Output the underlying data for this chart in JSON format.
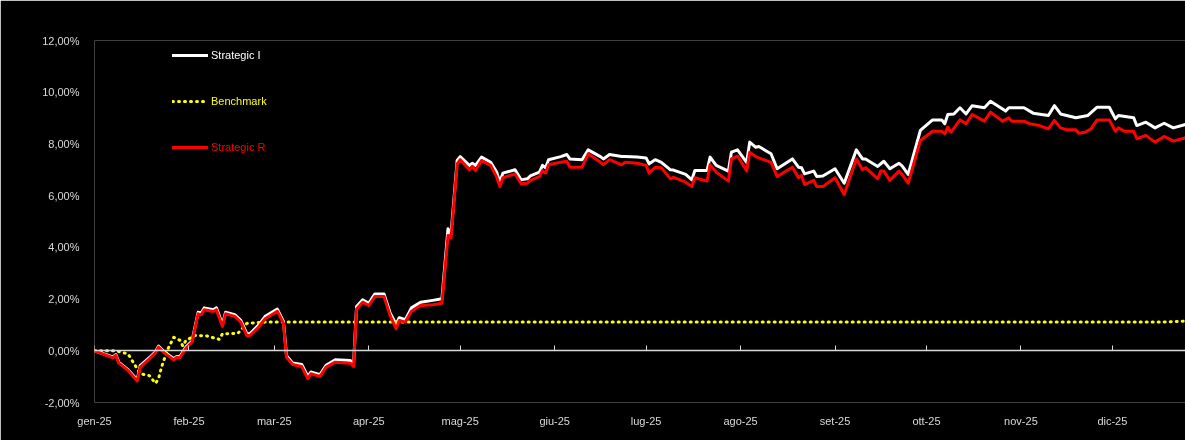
{
  "chart_data": {
    "type": "line",
    "legend": "top left",
    "line_style": "solid",
    "xlim": [
      "2025-01-01",
      "2025-12-25"
    ],
    "xticks": [
      {
        "value": "2025-01-01",
        "label": "gen-25"
      },
      {
        "value": "2025-02-01",
        "label": "feb-25"
      },
      {
        "value": "2025-03-01",
        "label": "mar-25"
      },
      {
        "value": "2025-04-01",
        "label": "apr-25"
      },
      {
        "value": "2025-05-01",
        "label": "mag-25"
      },
      {
        "value": "2025-06-01",
        "label": "giu-25"
      },
      {
        "value": "2025-07-01",
        "label": "lug-25"
      },
      {
        "value": "2025-08-01",
        "label": "ago-25"
      },
      {
        "value": "2025-09-01",
        "label": "set-25"
      },
      {
        "value": "2025-10-01",
        "label": "ott-25"
      },
      {
        "value": "2025-11-01",
        "label": "nov-25"
      },
      {
        "value": "2025-12-01",
        "label": "dic-25"
      }
    ],
    "ylim": [
      -2,
      12
    ],
    "yticks": [
      {
        "value": -2,
        "label": "-2,00%"
      },
      {
        "value": 0,
        "label": "0,00%"
      },
      {
        "value": 2,
        "label": "2,00%"
      },
      {
        "value": 4,
        "label": "4,00%"
      },
      {
        "value": 6,
        "label": "6,00%"
      },
      {
        "value": 8,
        "label": "8,00%"
      },
      {
        "value": 10,
        "label": "10,00%"
      },
      {
        "value": 12,
        "label": "12,00%"
      }
    ],
    "series": [
      {
        "name": "Strategic I",
        "color": "#ffffff",
        "x": [
          "2025-01-01",
          "2025-01-07",
          "2025-01-08",
          "2025-01-09",
          "2025-01-12",
          "2025-01-15",
          "2025-01-16",
          "2025-01-19",
          "2025-01-21",
          "2025-01-22",
          "2025-01-24",
          "2025-01-27",
          "2025-01-28",
          "2025-01-29",
          "2025-01-31",
          "2025-02-02",
          "2025-02-04",
          "2025-02-05",
          "2025-02-06",
          "2025-02-09",
          "2025-02-10",
          "2025-02-12",
          "2025-02-13",
          "2025-02-16",
          "2025-02-18",
          "2025-02-20",
          "2025-02-21",
          "2025-02-24",
          "2025-02-26",
          "2025-03-02",
          "2025-03-04",
          "2025-03-05",
          "2025-03-07",
          "2025-03-10",
          "2025-03-12",
          "2025-03-13",
          "2025-03-16",
          "2025-03-18",
          "2025-03-21",
          "2025-03-26",
          "2025-03-27",
          "2025-03-28",
          "2025-03-30",
          "2025-04-01",
          "2025-04-03",
          "2025-04-06",
          "2025-04-08",
          "2025-04-10",
          "2025-04-11",
          "2025-04-13",
          "2025-04-15",
          "2025-04-18",
          "2025-04-22",
          "2025-04-25",
          "2025-04-27",
          "2025-04-28",
          "2025-04-30",
          "2025-05-01",
          "2025-05-04",
          "2025-05-05",
          "2025-05-06",
          "2025-05-08",
          "2025-05-11",
          "2025-05-13",
          "2025-05-14",
          "2025-05-15",
          "2025-05-19",
          "2025-05-21",
          "2025-05-23",
          "2025-05-24",
          "2025-05-27",
          "2025-05-28",
          "2025-05-29",
          "2025-05-30",
          "2025-06-03",
          "2025-06-05",
          "2025-06-06",
          "2025-06-10",
          "2025-06-12",
          "2025-06-16",
          "2025-06-17",
          "2025-06-19",
          "2025-06-23",
          "2025-06-24",
          "2025-06-28",
          "2025-07-01",
          "2025-07-02",
          "2025-07-04",
          "2025-07-06",
          "2025-07-09",
          "2025-07-10",
          "2025-07-14",
          "2025-07-16",
          "2025-07-17",
          "2025-07-21",
          "2025-07-22",
          "2025-07-24",
          "2025-07-28",
          "2025-07-29",
          "2025-07-31",
          "2025-08-03",
          "2025-08-04",
          "2025-08-06",
          "2025-08-07",
          "2025-08-11",
          "2025-08-13",
          "2025-08-18",
          "2025-08-20",
          "2025-08-21",
          "2025-08-22",
          "2025-08-25",
          "2025-08-26",
          "2025-08-28",
          "2025-09-01",
          "2025-09-04",
          "2025-09-08",
          "2025-09-10",
          "2025-09-11",
          "2025-09-15",
          "2025-09-17",
          "2025-09-19",
          "2025-09-22",
          "2025-09-23",
          "2025-09-25",
          "2025-09-29",
          "2025-10-03",
          "2025-10-06",
          "2025-10-07",
          "2025-10-08",
          "2025-10-10",
          "2025-10-12",
          "2025-10-14",
          "2025-10-16",
          "2025-10-20",
          "2025-10-22",
          "2025-10-27",
          "2025-10-28",
          "2025-11-02",
          "2025-11-05",
          "2025-11-10",
          "2025-11-12",
          "2025-11-14",
          "2025-11-19",
          "2025-11-23",
          "2025-11-26",
          "2025-11-30",
          "2025-12-02",
          "2025-12-03",
          "2025-12-08",
          "2025-12-09",
          "2025-12-12",
          "2025-12-15",
          "2025-12-18",
          "2025-12-21",
          "2025-12-25"
        ],
        "values": [
          0,
          -0.24,
          -0.15,
          -0.45,
          -0.73,
          -1.12,
          -0.57,
          -0.27,
          -0.04,
          0.18,
          -0.05,
          -0.31,
          -0.22,
          -0.22,
          0.14,
          0.38,
          1.49,
          1.45,
          1.66,
          1.59,
          1.66,
          1.02,
          1.49,
          1.4,
          1.18,
          0.66,
          0.66,
          1.01,
          1.33,
          1.61,
          1.14,
          -0.19,
          -0.47,
          -0.53,
          -0.99,
          -0.82,
          -0.92,
          -0.56,
          -0.35,
          -0.38,
          -0.52,
          1.71,
          1.97,
          1.84,
          2.2,
          2.2,
          1.46,
          1.02,
          1.28,
          1.2,
          1.66,
          1.88,
          1.95,
          2.01,
          4.72,
          4.52,
          7.36,
          7.51,
          7.17,
          7.25,
          7.17,
          7.49,
          7.29,
          6.9,
          6.52,
          6.87,
          7.0,
          6.61,
          6.65,
          6.76,
          6.91,
          7.17,
          7.08,
          7.39,
          7.51,
          7.59,
          7.42,
          7.39,
          7.77,
          7.51,
          7.42,
          7.59,
          7.51,
          7.51,
          7.49,
          7.46,
          7.23,
          7.39,
          7.29,
          7.0,
          6.99,
          6.82,
          6.61,
          6.97,
          6.97,
          7.49,
          7.17,
          6.95,
          7.68,
          7.77,
          7.29,
          8.07,
          7.87,
          7.9,
          7.62,
          7.04,
          7.42,
          7.1,
          7.08,
          6.84,
          6.95,
          6.74,
          6.76,
          7.04,
          6.48,
          7.77,
          7.42,
          7.42,
          7.13,
          7.33,
          7.04,
          7.25,
          7.15,
          6.82,
          8.52,
          8.93,
          8.93,
          8.78,
          9.14,
          9.16,
          9.4,
          9.16,
          9.48,
          9.4,
          9.65,
          9.27,
          9.4,
          9.4,
          9.19,
          9.1,
          9.48,
          9.16,
          9.01,
          9.1,
          9.42,
          9.42,
          8.97,
          9.1,
          9.01,
          8.71,
          8.84,
          8.62,
          8.8,
          8.62,
          8.75
        ]
      },
      {
        "name": "Benchmark",
        "color": "#ffff00",
        "line_style": "dotted",
        "x": [
          "2025-01-01",
          "2025-01-08",
          "2025-01-12",
          "2025-01-14",
          "2025-01-16",
          "2025-01-19",
          "2025-01-21",
          "2025-01-22",
          "2025-01-23",
          "2025-01-25",
          "2025-01-27",
          "2025-01-29",
          "2025-01-30",
          "2025-01-31",
          "2025-02-03",
          "2025-02-07",
          "2025-02-11",
          "2025-02-12",
          "2025-02-17",
          "2025-02-20",
          "2025-02-26",
          "2025-12-17",
          "2025-12-25"
        ],
        "values": [
          0,
          0,
          -0.12,
          -0.5,
          -0.89,
          -0.96,
          -1.26,
          -1.08,
          -0.63,
          0.05,
          0.52,
          0.41,
          0.18,
          0.4,
          0.59,
          0.57,
          0.44,
          0.66,
          0.67,
          1.06,
          1.11,
          1.11,
          1.15
        ]
      },
      {
        "name": "Strategic R",
        "color": "#ff0000",
        "x": [
          "2025-01-01",
          "2025-01-07",
          "2025-01-08",
          "2025-01-09",
          "2025-01-12",
          "2025-01-15",
          "2025-01-16",
          "2025-01-19",
          "2025-01-21",
          "2025-01-22",
          "2025-01-24",
          "2025-01-27",
          "2025-01-28",
          "2025-01-29",
          "2025-01-31",
          "2025-02-02",
          "2025-02-04",
          "2025-02-05",
          "2025-02-06",
          "2025-02-09",
          "2025-02-10",
          "2025-02-12",
          "2025-02-13",
          "2025-02-16",
          "2025-02-18",
          "2025-02-20",
          "2025-02-21",
          "2025-02-24",
          "2025-02-26",
          "2025-03-02",
          "2025-03-04",
          "2025-03-05",
          "2025-03-07",
          "2025-03-10",
          "2025-03-12",
          "2025-03-13",
          "2025-03-16",
          "2025-03-18",
          "2025-03-21",
          "2025-03-26",
          "2025-03-27",
          "2025-03-28",
          "2025-03-30",
          "2025-04-01",
          "2025-04-03",
          "2025-04-06",
          "2025-04-08",
          "2025-04-10",
          "2025-04-11",
          "2025-04-13",
          "2025-04-15",
          "2025-04-18",
          "2025-04-22",
          "2025-04-25",
          "2025-04-27",
          "2025-04-28",
          "2025-04-30",
          "2025-05-01",
          "2025-05-04",
          "2025-05-05",
          "2025-05-06",
          "2025-05-08",
          "2025-05-11",
          "2025-05-13",
          "2025-05-14",
          "2025-05-15",
          "2025-05-19",
          "2025-05-21",
          "2025-05-23",
          "2025-05-24",
          "2025-05-27",
          "2025-05-28",
          "2025-05-29",
          "2025-05-30",
          "2025-06-03",
          "2025-06-05",
          "2025-06-06",
          "2025-06-10",
          "2025-06-12",
          "2025-06-16",
          "2025-06-17",
          "2025-06-19",
          "2025-06-23",
          "2025-06-24",
          "2025-06-28",
          "2025-07-01",
          "2025-07-02",
          "2025-07-04",
          "2025-07-06",
          "2025-07-09",
          "2025-07-10",
          "2025-07-14",
          "2025-07-16",
          "2025-07-17",
          "2025-07-21",
          "2025-07-22",
          "2025-07-24",
          "2025-07-28",
          "2025-07-29",
          "2025-07-31",
          "2025-08-03",
          "2025-08-04",
          "2025-08-06",
          "2025-08-07",
          "2025-08-11",
          "2025-08-13",
          "2025-08-18",
          "2025-08-20",
          "2025-08-21",
          "2025-08-22",
          "2025-08-25",
          "2025-08-26",
          "2025-08-28",
          "2025-09-01",
          "2025-09-04",
          "2025-09-08",
          "2025-09-10",
          "2025-09-11",
          "2025-09-15",
          "2025-09-16",
          "2025-09-17",
          "2025-09-19",
          "2025-09-22",
          "2025-09-23",
          "2025-09-25",
          "2025-09-29",
          "2025-10-03",
          "2025-10-06",
          "2025-10-07",
          "2025-10-08",
          "2025-10-09",
          "2025-10-12",
          "2025-10-14",
          "2025-10-16",
          "2025-10-20",
          "2025-10-22",
          "2025-10-26",
          "2025-10-28",
          "2025-10-29",
          "2025-11-02",
          "2025-11-04",
          "2025-11-07",
          "2025-11-10",
          "2025-11-12",
          "2025-11-14",
          "2025-11-16",
          "2025-11-19",
          "2025-11-20",
          "2025-11-22",
          "2025-11-24",
          "2025-11-26",
          "2025-11-30",
          "2025-12-02",
          "2025-12-03",
          "2025-12-05",
          "2025-12-08",
          "2025-12-09",
          "2025-12-12",
          "2025-12-15",
          "2025-12-18",
          "2025-12-21",
          "2025-12-25"
        ],
        "values": [
          0,
          -0.27,
          -0.18,
          -0.48,
          -0.76,
          -1.17,
          -0.63,
          -0.31,
          -0.08,
          0.14,
          -0.09,
          -0.35,
          -0.25,
          -0.27,
          0.1,
          0.33,
          1.43,
          1.39,
          1.59,
          1.52,
          1.59,
          0.94,
          1.43,
          1.33,
          1.11,
          0.59,
          0.59,
          0.94,
          1.24,
          1.53,
          1.07,
          -0.25,
          -0.53,
          -0.61,
          -1.08,
          -0.89,
          -0.99,
          -0.63,
          -0.44,
          -0.48,
          -0.61,
          1.62,
          1.88,
          1.75,
          2.1,
          2.1,
          1.36,
          0.85,
          1.17,
          1.11,
          1.53,
          1.75,
          1.78,
          1.84,
          4.46,
          4.37,
          7.23,
          7.39,
          7.0,
          7.13,
          6.97,
          7.36,
          7.17,
          6.71,
          6.35,
          6.69,
          6.84,
          6.46,
          6.48,
          6.59,
          6.74,
          6.97,
          6.87,
          7.2,
          7.29,
          7.33,
          7.1,
          7.1,
          7.62,
          7.29,
          7.2,
          7.39,
          7.19,
          7.29,
          7.25,
          7.17,
          6.87,
          7.1,
          7.08,
          6.65,
          6.71,
          6.52,
          6.35,
          6.69,
          6.56,
          7.2,
          6.91,
          6.56,
          7.42,
          7.53,
          6.95,
          7.68,
          7.51,
          7.46,
          7.29,
          6.74,
          7.1,
          6.69,
          6.78,
          6.43,
          6.59,
          6.35,
          6.35,
          6.69,
          6.04,
          7.42,
          7.0,
          7.08,
          6.65,
          6.95,
          6.95,
          6.59,
          6.95,
          6.82,
          6.48,
          8.13,
          8.49,
          8.49,
          8.39,
          8.65,
          8.45,
          8.93,
          8.78,
          9.14,
          8.88,
          9.23,
          8.88,
          9.01,
          8.88,
          8.88,
          8.78,
          8.71,
          8.58,
          8.91,
          8.62,
          8.55,
          8.55,
          8.41,
          8.45,
          8.58,
          8.93,
          8.93,
          8.49,
          8.62,
          8.49,
          8.49,
          8.2,
          8.33,
          8.07,
          8.29,
          8.11,
          8.24
        ]
      }
    ]
  }
}
